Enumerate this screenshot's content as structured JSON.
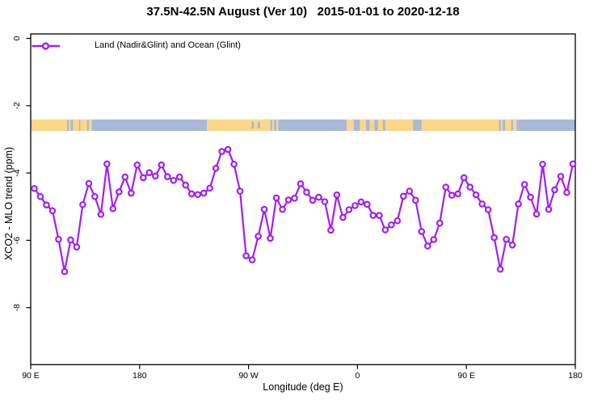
{
  "chart_data": {
    "type": "line",
    "title": "37.5N-42.5N August (Ver 10)   2015-01-01 to 2020-12-18",
    "xlabel": "Longitude (deg E)",
    "ylabel": "XCO2 - MLO trend (ppm)",
    "xlim": [
      90,
      540
    ],
    "ylim": [
      -9.7,
      0.15
    ],
    "grid": "off",
    "legend_position": "top-left-inside",
    "x_ticks": [
      {
        "value": 90,
        "label": "90 E"
      },
      {
        "value": 180,
        "label": "180"
      },
      {
        "value": 270,
        "label": "90 W"
      },
      {
        "value": 360,
        "label": "0"
      },
      {
        "value": 450,
        "label": "90 E"
      },
      {
        "value": 540,
        "label": "180"
      }
    ],
    "y_ticks": [
      {
        "value": 0,
        "label": "0"
      },
      {
        "value": -2,
        "label": "-2"
      },
      {
        "value": -4,
        "label": "-4"
      },
      {
        "value": -6,
        "label": "-6"
      },
      {
        "value": -8,
        "label": "-8"
      }
    ],
    "series": [
      {
        "name": "Land (Nadir&Glint) and Ocean (Glint)",
        "color": "#A020F0",
        "marker": "open-circle",
        "x": [
          93,
          98,
          103,
          108,
          113,
          118,
          123,
          128,
          133,
          138,
          143,
          148,
          153,
          158,
          163,
          168,
          173,
          178,
          183,
          188,
          193,
          198,
          203,
          208,
          213,
          218,
          223,
          228,
          233,
          238,
          243,
          248,
          253,
          258,
          263,
          268,
          273,
          278,
          283,
          288,
          293,
          298,
          303,
          308,
          313,
          318,
          323,
          328,
          333,
          338,
          343,
          348,
          353,
          358,
          363,
          368,
          373,
          378,
          383,
          388,
          393,
          398,
          403,
          408,
          413,
          418,
          423,
          428,
          433,
          438,
          443,
          448,
          453,
          458,
          463,
          468,
          473,
          478,
          483,
          488,
          493,
          498,
          503,
          508,
          513,
          518,
          523,
          528,
          533,
          538
        ],
        "values": [
          -4.46,
          -4.7,
          -4.95,
          -5.12,
          -5.97,
          -6.93,
          -5.99,
          -6.2,
          -4.94,
          -4.31,
          -4.7,
          -5.23,
          -3.73,
          -5.06,
          -4.56,
          -4.12,
          -4.6,
          -3.76,
          -4.14,
          -3.99,
          -4.09,
          -3.76,
          -4.11,
          -4.22,
          -4.12,
          -4.36,
          -4.62,
          -4.64,
          -4.6,
          -4.45,
          -3.86,
          -3.36,
          -3.3,
          -3.74,
          -4.54,
          -6.46,
          -6.58,
          -5.88,
          -5.08,
          -5.94,
          -4.74,
          -5.08,
          -4.8,
          -4.75,
          -4.32,
          -4.57,
          -4.81,
          -4.72,
          -4.85,
          -5.7,
          -4.65,
          -5.32,
          -5.09,
          -4.97,
          -4.86,
          -4.93,
          -5.26,
          -5.26,
          -5.69,
          -5.54,
          -5.42,
          -4.69,
          -4.54,
          -4.81,
          -5.74,
          -6.17,
          -5.98,
          -5.49,
          -4.42,
          -4.66,
          -4.62,
          -4.14,
          -4.42,
          -4.65,
          -4.92,
          -5.09,
          -5.92,
          -6.86,
          -5.97,
          -6.14,
          -4.92,
          -4.34,
          -4.72,
          -5.22,
          -3.74,
          -5.08,
          -4.5,
          -4.1,
          -4.58,
          -3.73
        ]
      }
    ],
    "map_band": {
      "description": "land/ocean strip for latitude band",
      "value_top": -2.41,
      "value_bottom": -2.75,
      "ocean_color": "#A7BAD7",
      "land_color": "#FBD78A",
      "land_segments": [
        [
          90,
          120
        ],
        [
          121.5,
          123
        ],
        [
          125,
          130
        ],
        [
          131,
          136.5
        ],
        [
          138,
          140.5
        ],
        [
          235.5,
          288
        ],
        [
          289.5,
          291
        ],
        [
          293,
          294.5
        ],
        [
          351,
          357
        ],
        [
          362,
          367
        ],
        [
          370,
          374
        ],
        [
          377,
          381
        ],
        [
          383,
          406
        ],
        [
          413,
          477
        ],
        [
          478.5,
          480
        ],
        [
          482,
          487
        ],
        [
          488.5,
          491.5
        ]
      ],
      "lake_segments": [
        [
          272.5,
          274.5
        ],
        [
          277.5,
          279.5
        ]
      ]
    },
    "frame_color": "#000000",
    "background_color": "#ffffff"
  }
}
